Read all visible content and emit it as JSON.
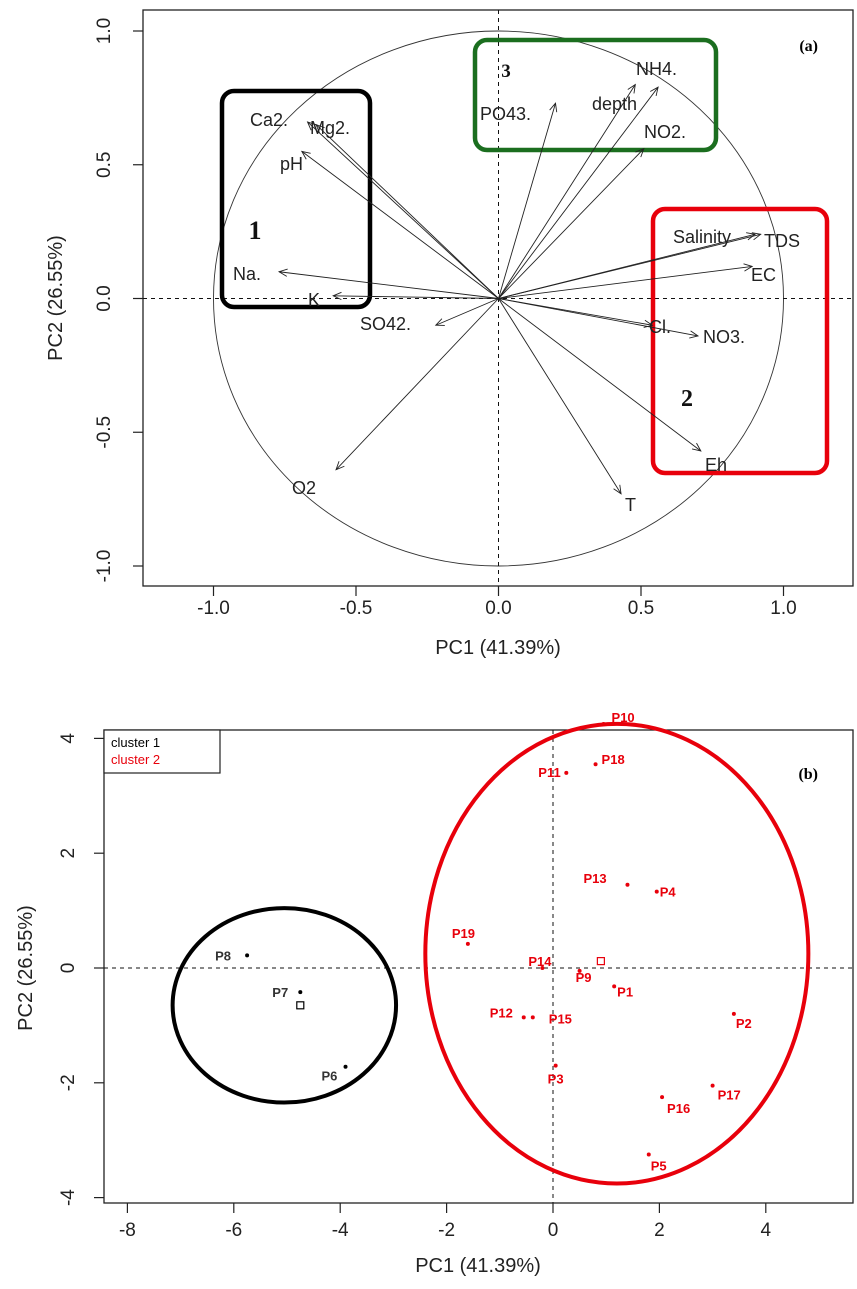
{
  "chart_data": [
    {
      "panel_tag": "(a)",
      "type": "biplot-loadings",
      "xlabel": "PC1 (41.39%)",
      "ylabel": "PC2 (26.55%)",
      "xlim": [
        -1.25,
        1.25
      ],
      "ylim": [
        -1.08,
        1.08
      ],
      "xticks": [
        -1.0,
        -0.5,
        0.0,
        0.5,
        1.0
      ],
      "yticks": [
        -1.0,
        -0.5,
        0.0,
        0.5,
        1.0
      ],
      "xtick_labels": [
        "-1.0",
        "-0.5",
        "0.0",
        "0.5",
        "1.0"
      ],
      "ytick_labels": [
        "-1.0",
        "-0.5",
        "0.0",
        "0.5",
        "1.0"
      ],
      "unit_circle": true,
      "reference_lines": {
        "x": 0,
        "y": 0
      },
      "variables": [
        {
          "name": "Ca2.",
          "x": -0.67,
          "y": 0.66
        },
        {
          "name": "Mg2.",
          "x": -0.64,
          "y": 0.65
        },
        {
          "name": "pH",
          "x": -0.69,
          "y": 0.55
        },
        {
          "name": "Na.",
          "x": -0.77,
          "y": 0.1
        },
        {
          "name": "K",
          "x": -0.58,
          "y": 0.01
        },
        {
          "name": "SO42.",
          "x": -0.22,
          "y": -0.1
        },
        {
          "name": "O2",
          "x": -0.57,
          "y": -0.64
        },
        {
          "name": "PO43.",
          "x": 0.2,
          "y": 0.73
        },
        {
          "name": "NH4.",
          "x": 0.48,
          "y": 0.8
        },
        {
          "name": "depth",
          "x": 0.56,
          "y": 0.79
        },
        {
          "name": "NO2.",
          "x": 0.51,
          "y": 0.56
        },
        {
          "name": "Salinity",
          "x": 0.9,
          "y": 0.24
        },
        {
          "name": "TDS",
          "x": 0.92,
          "y": 0.24
        },
        {
          "name": "EC",
          "x": 0.89,
          "y": 0.12
        },
        {
          "name": "Cl.",
          "x": 0.54,
          "y": -0.1
        },
        {
          "name": "NO3.",
          "x": 0.7,
          "y": -0.14
        },
        {
          "name": "Eh",
          "x": 0.71,
          "y": -0.57
        },
        {
          "name": "T",
          "x": 0.43,
          "y": -0.73
        }
      ],
      "groups": [
        {
          "label": "1",
          "color": "#000000"
        },
        {
          "label": "2",
          "color": "#e8000b"
        },
        {
          "label": "3",
          "color": "#1b6e1f"
        }
      ]
    },
    {
      "panel_tag": "(b)",
      "type": "scatter",
      "xlabel": "PC1 (41.39%)",
      "ylabel": "PC2 (26.55%)",
      "xlim": [
        -8.5,
        5.7
      ],
      "ylim": [
        -4.3,
        5.4
      ],
      "xticks": [
        -8,
        -6,
        -4,
        -2,
        0,
        2,
        4
      ],
      "yticks": [
        -4,
        -2,
        0,
        2,
        4
      ],
      "xtick_labels": [
        "-8",
        "-6",
        "-4",
        "-2",
        "0",
        "2",
        "4"
      ],
      "ytick_labels": [
        "-4",
        "-2",
        "0",
        "2",
        "4"
      ],
      "reference_lines": {
        "x": 0,
        "y": 0
      },
      "legend": {
        "placement": "top-left",
        "entries": [
          {
            "name": "cluster 1",
            "color": "#000000"
          },
          {
            "name": "cluster 2",
            "color": "#e8000b"
          }
        ]
      },
      "series": [
        {
          "name": "cluster 1",
          "color": "#000000",
          "points": [
            {
              "label": "P8",
              "x": -5.75,
              "y": 0.22
            },
            {
              "label": "P7",
              "x": -4.75,
              "y": -0.42
            },
            {
              "label": "P6",
              "x": -3.9,
              "y": -1.72
            }
          ]
        },
        {
          "name": "cluster 2",
          "color": "#e8000b",
          "points": [
            {
              "label": "P10",
              "x": 0.95,
              "y": 4.25
            },
            {
              "label": "P18",
              "x": 0.8,
              "y": 3.55
            },
            {
              "label": "P11",
              "x": 0.25,
              "y": 3.4
            },
            {
              "label": "P13",
              "x": 1.4,
              "y": 1.45
            },
            {
              "label": "P4",
              "x": 1.95,
              "y": 1.33
            },
            {
              "label": "P19",
              "x": -1.6,
              "y": 0.42
            },
            {
              "label": "P14",
              "x": -0.2,
              "y": 0.0
            },
            {
              "label": "P9",
              "x": 0.5,
              "y": -0.05
            },
            {
              "label": "P1",
              "x": 1.15,
              "y": -0.32
            },
            {
              "label": "P12",
              "x": -0.55,
              "y": -0.86
            },
            {
              "label": "P15",
              "x": -0.38,
              "y": -0.86
            },
            {
              "label": "P2",
              "x": 3.4,
              "y": -0.8
            },
            {
              "label": "P3",
              "x": 0.05,
              "y": -1.7
            },
            {
              "label": "P16",
              "x": 2.05,
              "y": -2.25
            },
            {
              "label": "P17",
              "x": 3.0,
              "y": -2.05
            },
            {
              "label": "P5",
              "x": 1.8,
              "y": -3.25
            }
          ]
        }
      ],
      "centroids": [
        {
          "x": -4.75,
          "y": -0.65
        },
        {
          "x": 0.9,
          "y": 0.12
        }
      ],
      "cluster_ellipses": [
        {
          "cluster": "cluster 1",
          "center": [
            -5.05,
            -0.65
          ],
          "radius_x": 2.1,
          "radius_y": 2.2,
          "color": "#000000"
        },
        {
          "cluster": "cluster 2",
          "center": [
            1.2,
            0.25
          ],
          "radius_x": 3.6,
          "radius_y": 5.2,
          "color": "#e8000b"
        }
      ]
    }
  ]
}
